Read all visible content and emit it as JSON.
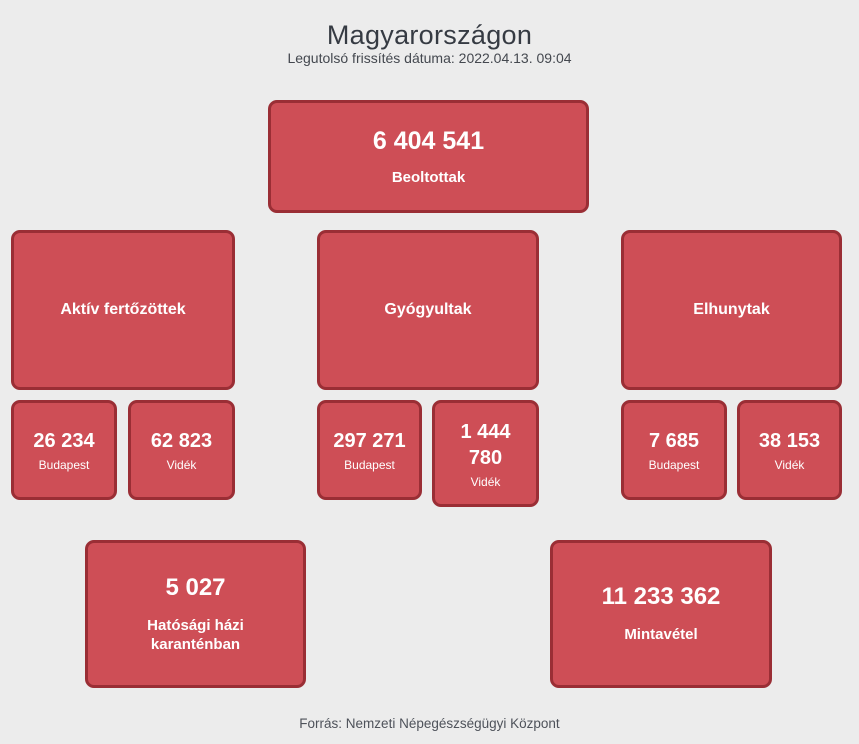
{
  "page": {
    "title": "Magyarországon",
    "subtitle": "Legutolsó frissítés dátuma: 2022.04.13. 09:04",
    "source": "Forrás: Nemzeti Népegészségügyi Központ"
  },
  "colors": {
    "background": "#ececec",
    "card_fill": "#ce4e56",
    "card_border": "#9a2e35",
    "card_text": "#ffffff",
    "heading_text": "#363b43"
  },
  "stats": {
    "vaccinated": {
      "value": "6 404 541",
      "label": "Beoltottak"
    },
    "active": {
      "label": "Aktív fertőzöttek",
      "budapest": {
        "value": "26 234",
        "label": "Budapest"
      },
      "videk": {
        "value": "62 823",
        "label": "Vidék"
      }
    },
    "recovered": {
      "label": "Gyógyultak",
      "budapest": {
        "value": "297 271",
        "label": "Budapest"
      },
      "videk": {
        "value": "1 444 780",
        "label": "Vidék"
      }
    },
    "deceased": {
      "label": "Elhunytak",
      "budapest": {
        "value": "7 685",
        "label": "Budapest"
      },
      "videk": {
        "value": "38 153",
        "label": "Vidék"
      }
    },
    "quarantine": {
      "value": "5 027",
      "label": "Hatósági házi karanténban"
    },
    "samples": {
      "value": "11 233 362",
      "label": "Mintavétel"
    }
  }
}
